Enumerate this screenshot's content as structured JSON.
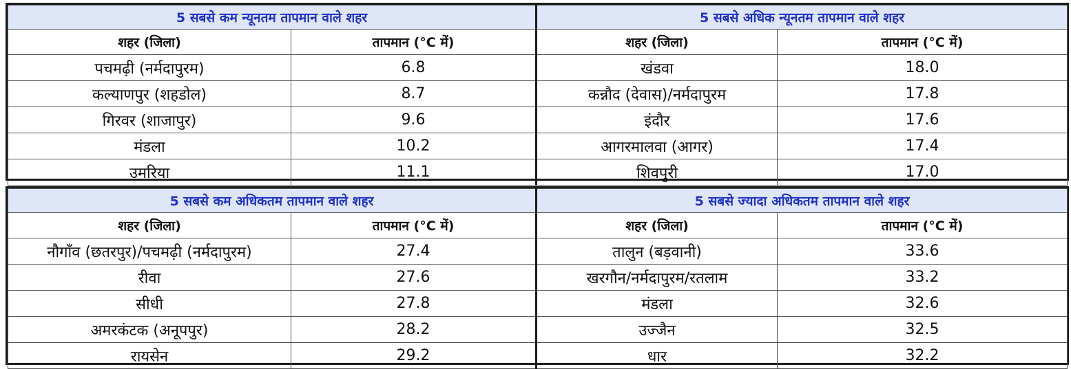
{
  "top": {
    "left_title": "5 सबसे कम न्यूनतम तापमान वाले शहर",
    "right_title": "5 सबसे अधिक न्यूनतम तापमान वाले शहर",
    "col_city": "शहर (जिला)",
    "col_temp": "तापमान (°C में)",
    "left_rows": [
      {
        "city": "पचमढ़ी (नर्मदापुरम)",
        "temp": "6.8"
      },
      {
        "city": "कल्याणपुर (शहडोल)",
        "temp": "8.7"
      },
      {
        "city": "गिरवर (शाजापुर)",
        "temp": "9.6"
      },
      {
        "city": "मंडला",
        "temp": "10.2"
      },
      {
        "city": "उमरिया",
        "temp": "11.1"
      }
    ],
    "right_rows": [
      {
        "city": "खंडवा",
        "temp": "18.0"
      },
      {
        "city": "कन्नौद (देवास)/नर्मदापुरम",
        "temp": "17.8"
      },
      {
        "city": "इंदौर",
        "temp": "17.6"
      },
      {
        "city": "आगरमालवा (आगर)",
        "temp": "17.4"
      },
      {
        "city": "शिवपुरी",
        "temp": "17.0"
      }
    ]
  },
  "bottom": {
    "left_title": "5 सबसे कम अधिकतम तापमान वाले शहर",
    "right_title": "5 सबसे ज्यादा अधिकतम तापमान वाले शहर",
    "col_city": "शहर (जिला)",
    "col_temp": "तापमान (°C में)",
    "left_rows": [
      {
        "city": "नौगाँव (छतरपुर)/पचमढ़ी (नर्मदापुरम)",
        "temp": "27.4"
      },
      {
        "city": "रीवा",
        "temp": "27.6"
      },
      {
        "city": "सीधी",
        "temp": "27.8"
      },
      {
        "city": "अमरकंटक (अनूपपुर)",
        "temp": "28.2"
      },
      {
        "city": "रायसेन",
        "temp": "29.2"
      }
    ],
    "right_rows": [
      {
        "city": "तालुन (बड़वानी)",
        "temp": "33.6"
      },
      {
        "city": "खरगौन/नर्मदापुरम/रतलाम",
        "temp": "33.2"
      },
      {
        "city": "मंडला",
        "temp": "32.6"
      },
      {
        "city": "उज्जैन",
        "temp": "32.5"
      },
      {
        "city": "धार",
        "temp": "32.2"
      }
    ]
  },
  "colors": {
    "title_bg": "#dfe6f7",
    "title_text": "#1f31c9",
    "border": "#1c1c1c"
  }
}
